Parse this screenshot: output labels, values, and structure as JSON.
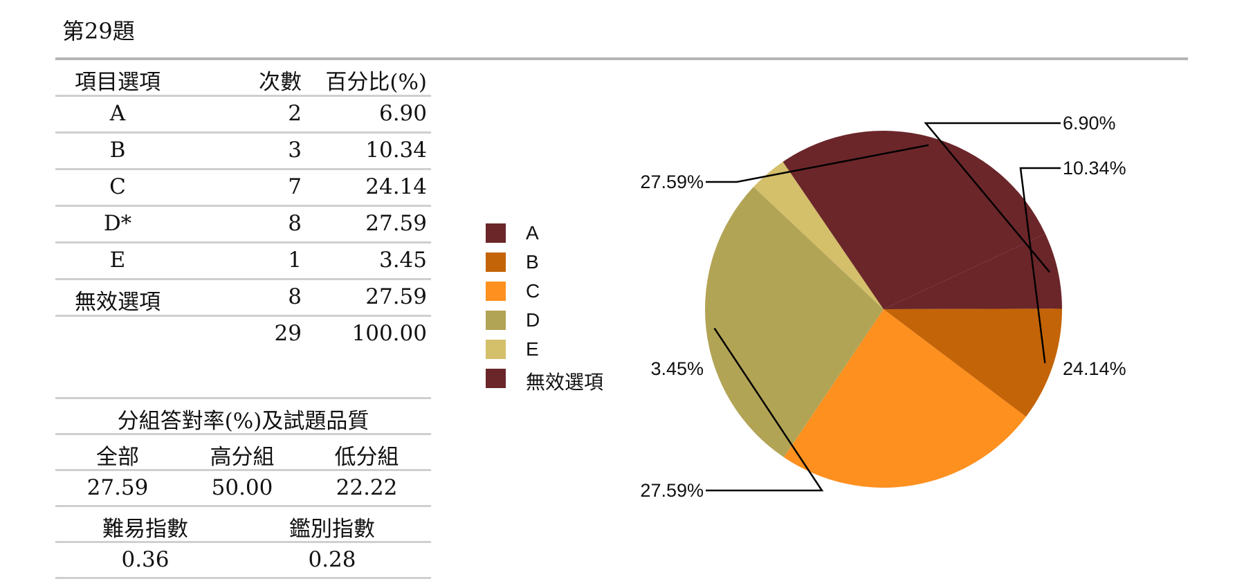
{
  "title": "第29題",
  "option_table": {
    "headers": [
      "項目選項",
      "次數",
      "百分比(%)"
    ],
    "rows": [
      {
        "option": "A",
        "count": "2",
        "percent": "6.90"
      },
      {
        "option": "B",
        "count": "3",
        "percent": "10.34"
      },
      {
        "option": "C",
        "count": "7",
        "percent": "24.14"
      },
      {
        "option": "D*",
        "count": "8",
        "percent": "27.59"
      },
      {
        "option": "E",
        "count": "1",
        "percent": "3.45"
      },
      {
        "option": "無效選項",
        "count": "8",
        "percent": "27.59"
      }
    ],
    "total": {
      "option": "",
      "count": "29",
      "percent": "100.00"
    }
  },
  "quality_table": {
    "title": "分組答對率(%)及試題品質",
    "group_headers": [
      "全部",
      "高分組",
      "低分組"
    ],
    "group_values": [
      "27.59",
      "50.00",
      "22.22"
    ],
    "index_headers": [
      "難易指數",
      "鑑別指數"
    ],
    "index_values": [
      "0.36",
      "0.28"
    ]
  },
  "chart_data": {
    "type": "pie",
    "categories": [
      "A",
      "B",
      "C",
      "D",
      "E",
      "無效選項"
    ],
    "values": [
      6.9,
      10.34,
      24.14,
      27.59,
      3.45,
      27.59
    ],
    "data_labels": [
      "6.90%",
      "10.34%",
      "24.14%",
      "27.59%",
      "3.45%",
      "27.59%"
    ],
    "colors": [
      "#6b262a",
      "#c46408",
      "#fd901f",
      "#b2a455",
      "#d4bf6b",
      "#6b262a"
    ],
    "legend_position": "left",
    "legend": [
      "A",
      "B",
      "C",
      "D",
      "E",
      "無效選項"
    ],
    "start_angle_deg": 65,
    "direction": "clockwise"
  }
}
